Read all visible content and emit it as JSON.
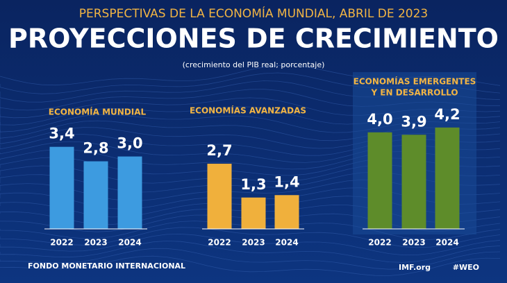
{
  "header": {
    "supertitle": "PERSPECTIVAS DE LA ECONOMÍA MUNDIAL, ABRIL DE 2023",
    "title": "PROYECCIONES DE CRECIMIENTO",
    "subtitle": "(crecimiento del PIB real; porcentaje)"
  },
  "chart_data": [
    {
      "type": "bar",
      "title": [
        "ECONOMÍA MUNDIAL"
      ],
      "categories": [
        "2022",
        "2023",
        "2024"
      ],
      "values": [
        3.4,
        2.8,
        3.0
      ],
      "value_labels": [
        "3,4",
        "2,8",
        "3,0"
      ],
      "color": "#3d9be0",
      "ylim": [
        0,
        4.5
      ]
    },
    {
      "type": "bar",
      "title": [
        "ECONOMÍAS AVANZADAS"
      ],
      "categories": [
        "2022",
        "2023",
        "2024"
      ],
      "values": [
        2.7,
        1.3,
        1.4
      ],
      "value_labels": [
        "2,7",
        "1,3",
        "1,4"
      ],
      "color": "#f0b03c",
      "ylim": [
        0,
        4.5
      ]
    },
    {
      "type": "bar",
      "title": [
        "ECONOMÍAS EMERGENTES",
        "Y EN DESARROLLO"
      ],
      "categories": [
        "2022",
        "2023",
        "2024"
      ],
      "values": [
        4.0,
        3.9,
        4.2
      ],
      "value_labels": [
        "4,0",
        "3,9",
        "4,2"
      ],
      "color": "#5e8c2a",
      "ylim": [
        0,
        4.5
      ]
    }
  ],
  "footer": {
    "organization": "FONDO MONETARIO INTERNACIONAL",
    "site": "IMF.org",
    "hashtag": "#WEO"
  }
}
